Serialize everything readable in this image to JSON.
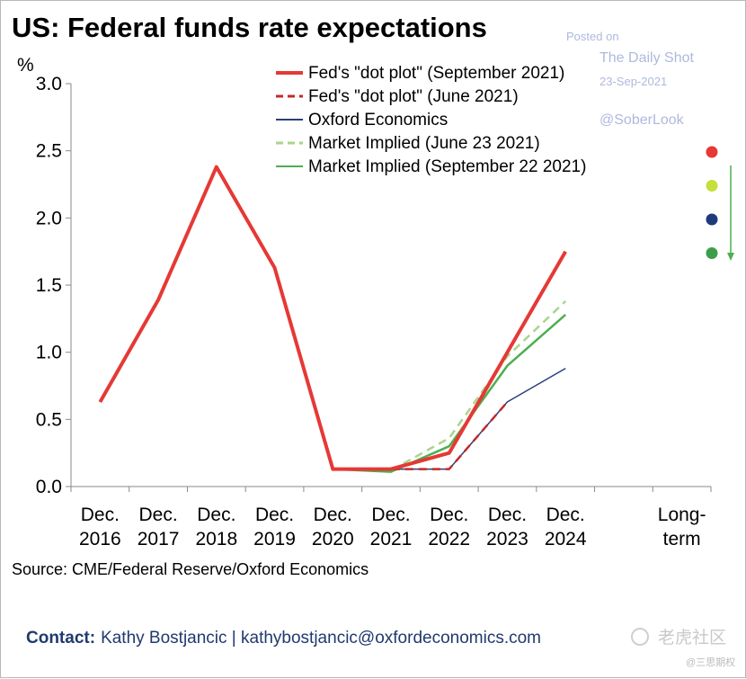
{
  "chart_data": {
    "type": "line",
    "title": "US: Federal funds rate expectations",
    "ylabel": "%",
    "xlabel": "",
    "ylim": [
      0,
      3.0
    ],
    "yticks": [
      "0.0",
      "0.5",
      "1.0",
      "1.5",
      "2.0",
      "2.5",
      "3.0"
    ],
    "categories": [
      {
        "line1": "Dec.",
        "line2": "2016"
      },
      {
        "line1": "Dec.",
        "line2": "2017"
      },
      {
        "line1": "Dec.",
        "line2": "2018"
      },
      {
        "line1": "Dec.",
        "line2": "2019"
      },
      {
        "line1": "Dec.",
        "line2": "2020"
      },
      {
        "line1": "Dec.",
        "line2": "2021"
      },
      {
        "line1": "Dec.",
        "line2": "2022"
      },
      {
        "line1": "Dec.",
        "line2": "2023"
      },
      {
        "line1": "Dec.",
        "line2": "2024"
      },
      {
        "line1": "",
        "line2": ""
      },
      {
        "line1": "Long-",
        "line2": "term"
      }
    ],
    "series": [
      {
        "name": "Oxford Economics",
        "color": "#2a3f7a",
        "style": "solid",
        "width": 1.5,
        "values": [
          0.63,
          1.39,
          2.38,
          1.63,
          0.13,
          0.13,
          0.13,
          0.63,
          0.88,
          null,
          null
        ],
        "longterm_dot_color": "#1f3a7a"
      },
      {
        "name": "Market Implied (June 23 2021)",
        "color": "#a8d68a",
        "style": "dashed",
        "width": 2.5,
        "values": [
          0.63,
          1.39,
          2.38,
          1.63,
          0.13,
          0.12,
          0.36,
          0.97,
          1.38,
          null,
          null
        ],
        "longterm_dot_color": "#c4e03a"
      },
      {
        "name": "Market Implied (September 22 2021)",
        "color": "#4caf50",
        "style": "solid",
        "width": 2.5,
        "values": [
          0.63,
          1.39,
          2.38,
          1.63,
          0.13,
          0.11,
          0.3,
          0.9,
          1.28,
          null,
          null
        ],
        "longterm_dot_color": "#3d9e4a"
      },
      {
        "name": "Fed's \"dot plot\" (June 2021)",
        "color": "#c62828",
        "style": "dashed",
        "width": 2.5,
        "values": [
          0.63,
          1.39,
          2.38,
          1.63,
          0.13,
          0.13,
          0.13,
          0.63,
          null,
          null,
          null
        ],
        "longterm_dot_color": null
      },
      {
        "name": "Fed's \"dot plot\" (September 2021)",
        "color": "#e53935",
        "style": "solid",
        "width": 4,
        "values": [
          0.63,
          1.39,
          2.38,
          1.63,
          0.13,
          0.13,
          0.25,
          1.0,
          1.75,
          null,
          null
        ],
        "longterm_dot_color": "#e53935"
      }
    ],
    "legend_order": [
      {
        "name": "Fed's \"dot plot\" (September 2021)",
        "color": "#e53935",
        "style": "solid"
      },
      {
        "name": "Fed's \"dot plot\" (June 2021)",
        "color": "#c62828",
        "style": "dashed"
      },
      {
        "name": "Oxford Economics",
        "color": "#2a3f7a",
        "style": "solid"
      },
      {
        "name": "Market Implied (June 23 2021)",
        "color": "#a8d68a",
        "style": "dashed"
      },
      {
        "name": "Market Implied (September 22 2021)",
        "color": "#4caf50",
        "style": "solid"
      }
    ],
    "longterm_dots": [
      "#e53935",
      "#c4e03a",
      "#1f3a7a",
      "#3d9e4a"
    ],
    "grid": false,
    "legend_position": "top-right"
  },
  "source": "Source: CME/Federal Reserve/Oxford Economics",
  "contact": {
    "label": "Contact:",
    "text": "Kathy Bostjancic | kathybostjancic@oxfordeconomics.com"
  },
  "watermark": {
    "posted_on": "Posted on",
    "daily_shot": "The Daily Shot",
    "date": "23-Sep-2021",
    "handle": "@SoberLook"
  },
  "brand": {
    "main": "老虎社区",
    "sub": "@三思期权"
  }
}
